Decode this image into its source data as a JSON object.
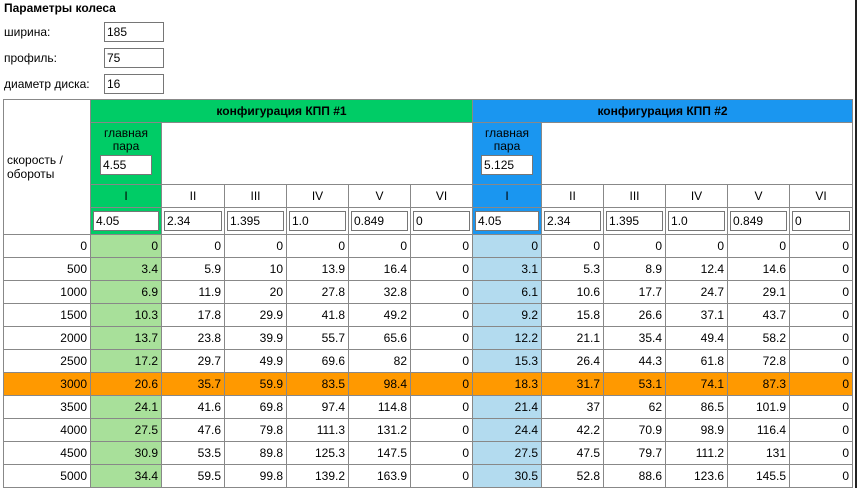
{
  "header": {
    "title": "Параметры колеса"
  },
  "params": [
    {
      "label": "ширина:",
      "value": "185"
    },
    {
      "label": "профиль:",
      "value": "75"
    },
    {
      "label": "диаметр диска:",
      "value": "16"
    }
  ],
  "table": {
    "corner": "скорость / обороты",
    "configs": [
      {
        "title": "конфигурация КПП #1",
        "main_label": "главная пара",
        "main_value": "4.55",
        "gears": [
          "I",
          "II",
          "III",
          "IV",
          "V",
          "VI"
        ],
        "ratios": [
          "4.05",
          "2.34",
          "1.395",
          "1.0",
          "0.849",
          "0"
        ]
      },
      {
        "title": "конфигурация КПП #2",
        "main_label": "главная пара",
        "main_value": "5.125",
        "gears": [
          "I",
          "II",
          "III",
          "IV",
          "V",
          "VI"
        ],
        "ratios": [
          "4.05",
          "2.34",
          "1.395",
          "1.0",
          "0.849",
          "0"
        ]
      }
    ],
    "rows": [
      {
        "rpm": "0",
        "speeds": [
          [
            "0",
            "0",
            "0",
            "0",
            "0",
            "0"
          ],
          [
            "0",
            "0",
            "0",
            "0",
            "0",
            "0"
          ]
        ]
      },
      {
        "rpm": "500",
        "speeds": [
          [
            "3.4",
            "5.9",
            "10",
            "13.9",
            "16.4",
            "0"
          ],
          [
            "3.1",
            "5.3",
            "8.9",
            "12.4",
            "14.6",
            "0"
          ]
        ]
      },
      {
        "rpm": "1000",
        "speeds": [
          [
            "6.9",
            "11.9",
            "20",
            "27.8",
            "32.8",
            "0"
          ],
          [
            "6.1",
            "10.6",
            "17.7",
            "24.7",
            "29.1",
            "0"
          ]
        ]
      },
      {
        "rpm": "1500",
        "speeds": [
          [
            "10.3",
            "17.8",
            "29.9",
            "41.8",
            "49.2",
            "0"
          ],
          [
            "9.2",
            "15.8",
            "26.6",
            "37.1",
            "43.7",
            "0"
          ]
        ]
      },
      {
        "rpm": "2000",
        "speeds": [
          [
            "13.7",
            "23.8",
            "39.9",
            "55.7",
            "65.6",
            "0"
          ],
          [
            "12.2",
            "21.1",
            "35.4",
            "49.4",
            "58.2",
            "0"
          ]
        ]
      },
      {
        "rpm": "2500",
        "speeds": [
          [
            "17.2",
            "29.7",
            "49.9",
            "69.6",
            "82",
            "0"
          ],
          [
            "15.3",
            "26.4",
            "44.3",
            "61.8",
            "72.8",
            "0"
          ]
        ]
      },
      {
        "rpm": "3000",
        "speeds": [
          [
            "20.6",
            "35.7",
            "59.9",
            "83.5",
            "98.4",
            "0"
          ],
          [
            "18.3",
            "31.7",
            "53.1",
            "74.1",
            "87.3",
            "0"
          ]
        ]
      },
      {
        "rpm": "3500",
        "speeds": [
          [
            "24.1",
            "41.6",
            "69.8",
            "97.4",
            "114.8",
            "0"
          ],
          [
            "21.4",
            "37",
            "62",
            "86.5",
            "101.9",
            "0"
          ]
        ]
      },
      {
        "rpm": "4000",
        "speeds": [
          [
            "27.5",
            "47.6",
            "79.8",
            "111.3",
            "131.2",
            "0"
          ],
          [
            "24.4",
            "42.2",
            "70.9",
            "98.9",
            "116.4",
            "0"
          ]
        ]
      },
      {
        "rpm": "4500",
        "speeds": [
          [
            "30.9",
            "53.5",
            "89.8",
            "125.3",
            "147.5",
            "0"
          ],
          [
            "27.5",
            "47.5",
            "79.7",
            "111.2",
            "131",
            "0"
          ]
        ]
      },
      {
        "rpm": "5000",
        "speeds": [
          [
            "34.4",
            "59.5",
            "99.8",
            "139.2",
            "163.9",
            "0"
          ],
          [
            "30.5",
            "52.8",
            "88.6",
            "123.6",
            "145.5",
            "0"
          ]
        ]
      }
    ]
  }
}
